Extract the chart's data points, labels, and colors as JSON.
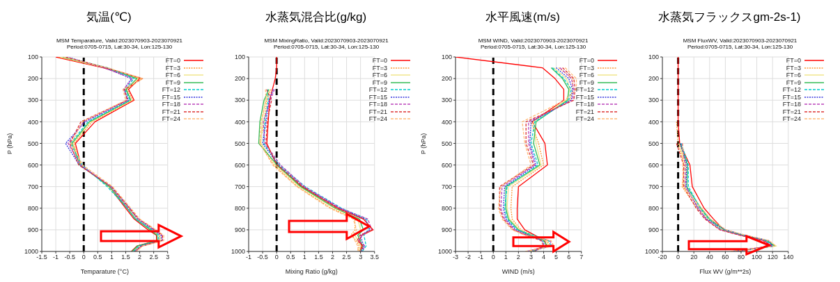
{
  "chart_data": [
    {
      "type": "line",
      "title": "気温(℃)",
      "subtitle": "MSM Temparature, Valid:2023070903-2023070921\nPeriod:0705-0715, Lat:30-34, Lon:125-130",
      "xlabel": "Temparature (°C)",
      "ylabel": "P (hPa)",
      "xlim": [
        -1.5,
        3
      ],
      "xticks": [
        -1.5,
        -1,
        -0.5,
        0,
        0.5,
        1,
        1.5,
        2,
        2.5,
        3
      ],
      "ylim": [
        1000,
        100
      ],
      "yticks": [
        100,
        200,
        300,
        400,
        500,
        600,
        700,
        800,
        900,
        1000
      ],
      "grid": true,
      "legend": "top right",
      "ref_lines": [
        {
          "axis": "x",
          "value": 0,
          "color": "#000000",
          "line_style": "dashed"
        }
      ],
      "series": [
        {
          "name": "FT=0",
          "color": "#ff0000",
          "line_style": "solid",
          "x": [
            -1.0,
            0.7,
            2.0,
            1.6,
            1.8,
            0.4,
            -0.3,
            -0.1,
            0.9,
            1.5,
            1.8,
            2.3,
            2.6,
            2.6,
            1.9,
            1.7
          ],
          "values": [
            100,
            150,
            200,
            250,
            300,
            400,
            500,
            600,
            700,
            800,
            850,
            900,
            925,
            950,
            975,
            1000
          ]
        },
        {
          "name": "FT=3",
          "color": "#ff9933",
          "line_style": "dotted",
          "x": [
            -0.9,
            0.74,
            2.05,
            1.55,
            1.75,
            0.3,
            -0.35,
            -0.12,
            0.95,
            1.58,
            1.9,
            2.4,
            2.7,
            2.7,
            2.0,
            1.75
          ],
          "values": [
            100,
            150,
            200,
            250,
            300,
            400,
            500,
            600,
            700,
            800,
            850,
            900,
            925,
            950,
            975,
            1000
          ]
        },
        {
          "name": "FT=6",
          "color": "#f0e68c",
          "line_style": "solid",
          "x": [
            -0.85,
            0.78,
            1.95,
            1.5,
            1.7,
            0.25,
            -0.4,
            -0.08,
            0.87,
            1.62,
            1.88,
            2.45,
            2.72,
            2.75,
            2.02,
            1.8
          ],
          "values": [
            100,
            150,
            200,
            250,
            300,
            400,
            500,
            600,
            700,
            800,
            850,
            900,
            925,
            950,
            975,
            1000
          ]
        },
        {
          "name": "FT=9",
          "color": "#33bb55",
          "line_style": "solid",
          "x": [
            -0.75,
            0.82,
            1.9,
            1.52,
            1.68,
            0.2,
            -0.42,
            -0.14,
            0.92,
            1.55,
            1.85,
            2.38,
            2.62,
            2.64,
            1.92,
            1.72
          ],
          "values": [
            100,
            150,
            200,
            250,
            300,
            400,
            500,
            600,
            700,
            800,
            850,
            900,
            925,
            950,
            975,
            1000
          ]
        },
        {
          "name": "FT=12",
          "color": "#00cccc",
          "line_style": "dashed",
          "x": [
            -0.7,
            0.86,
            1.8,
            1.48,
            1.65,
            0.15,
            -0.47,
            -0.06,
            0.84,
            1.56,
            1.84,
            2.44,
            2.68,
            2.68,
            1.97,
            1.78
          ],
          "values": [
            100,
            150,
            200,
            250,
            300,
            400,
            500,
            600,
            700,
            800,
            850,
            900,
            925,
            950,
            975,
            1000
          ]
        },
        {
          "name": "FT=15",
          "color": "#3333dd",
          "line_style": "dotted",
          "x": [
            -0.6,
            0.76,
            1.7,
            1.44,
            1.6,
            0.05,
            -0.65,
            -0.16,
            0.98,
            1.65,
            1.92,
            2.5,
            2.76,
            2.78,
            2.04,
            1.82
          ],
          "values": [
            100,
            150,
            200,
            250,
            300,
            400,
            500,
            600,
            700,
            800,
            850,
            900,
            925,
            950,
            975,
            1000
          ]
        },
        {
          "name": "FT=18",
          "color": "#bb44bb",
          "line_style": "dashed",
          "x": [
            -0.64,
            0.72,
            1.75,
            1.42,
            1.58,
            0.0,
            -0.56,
            -0.11,
            0.96,
            1.6,
            1.96,
            2.52,
            2.8,
            2.82,
            2.06,
            1.86
          ],
          "values": [
            100,
            150,
            200,
            250,
            300,
            400,
            500,
            600,
            700,
            800,
            850,
            900,
            925,
            950,
            975,
            1000
          ]
        },
        {
          "name": "FT=21",
          "color": "#dd3333",
          "line_style": "dashed",
          "x": [
            -0.66,
            0.8,
            2.1,
            1.46,
            1.55,
            -0.1,
            -0.5,
            -0.18,
            1.0,
            1.64,
            1.98,
            2.56,
            2.82,
            2.8,
            2.08,
            1.84
          ],
          "values": [
            100,
            150,
            200,
            250,
            300,
            400,
            500,
            600,
            700,
            800,
            850,
            900,
            925,
            950,
            975,
            1000
          ]
        },
        {
          "name": "FT=24",
          "color": "#ffbb77",
          "line_style": "dashed",
          "x": [
            -0.72,
            0.84,
            2.12,
            1.4,
            1.5,
            -0.05,
            -0.45,
            -0.04,
            1.03,
            1.68,
            2.0,
            2.58,
            2.86,
            2.86,
            2.1,
            1.88
          ],
          "values": [
            100,
            150,
            200,
            250,
            300,
            400,
            500,
            600,
            700,
            800,
            850,
            900,
            925,
            950,
            975,
            1000
          ]
        }
      ]
    },
    {
      "type": "line",
      "title": "水蒸気混合比(g/kg)",
      "subtitle": "MSM MixingRatio, Valid:2023070903-2023070921\nPeriod:0705-0715, Lat:30-34, Lon:125-130",
      "xlabel": "Mixing Ratio (g/kg)",
      "xlim": [
        -1,
        3.5
      ],
      "xticks": [
        -1,
        -0.5,
        0,
        0.5,
        1,
        1.5,
        2,
        2.5,
        3,
        3.5
      ],
      "ylim": [
        1000,
        100
      ],
      "yticks": [
        100,
        200,
        300,
        400,
        500,
        600,
        700,
        800,
        900,
        1000
      ],
      "grid": true,
      "legend": "top right",
      "ref_lines": [
        {
          "axis": "x",
          "value": 0,
          "color": "#000000",
          "line_style": "dashed"
        }
      ],
      "series": [
        {
          "name": "FT=0",
          "color": "#ff0000",
          "line_style": "solid",
          "x": [
            0,
            0,
            -0.05,
            -0.15,
            -0.25,
            -0.3,
            -0.35,
            0.0,
            0.9,
            2.2,
            3.1,
            3.45,
            3.05,
            2.95,
            3.05,
            2.95
          ],
          "values": [
            100,
            150,
            200,
            250,
            300,
            400,
            500,
            600,
            700,
            800,
            850,
            900,
            925,
            950,
            975,
            1000
          ]
        },
        {
          "name": "FT=3",
          "color": "#ff9933",
          "line_style": "dotted",
          "x": [
            null,
            null,
            null,
            -0.2,
            -0.35,
            -0.45,
            -0.6,
            -0.1,
            0.75,
            1.95,
            2.8,
            2.8,
            2.65,
            2.85,
            2.95,
            2.9
          ],
          "values": [
            null,
            null,
            null,
            250,
            300,
            400,
            500,
            600,
            700,
            800,
            850,
            900,
            925,
            950,
            975,
            1000
          ]
        },
        {
          "name": "FT=6",
          "color": "#f0e68c",
          "line_style": "solid",
          "x": [
            null,
            null,
            null,
            -0.24,
            -0.4,
            -0.52,
            -0.56,
            -0.05,
            0.82,
            2.05,
            2.9,
            3.0,
            2.8,
            2.9,
            3.0,
            2.95
          ],
          "values": [
            null,
            null,
            null,
            250,
            300,
            400,
            500,
            600,
            700,
            800,
            850,
            900,
            925,
            950,
            975,
            1000
          ]
        },
        {
          "name": "FT=9",
          "color": "#33bb55",
          "line_style": "solid",
          "x": [
            null,
            null,
            null,
            -0.28,
            -0.45,
            -0.6,
            -0.64,
            0.02,
            0.86,
            2.1,
            2.96,
            3.1,
            2.9,
            3.0,
            3.08,
            3.0
          ],
          "values": [
            null,
            null,
            null,
            250,
            300,
            400,
            500,
            600,
            700,
            800,
            850,
            900,
            925,
            950,
            975,
            1000
          ]
        },
        {
          "name": "FT=12",
          "color": "#00cccc",
          "line_style": "dashed",
          "x": [
            null,
            null,
            null,
            -0.32,
            -0.3,
            -0.42,
            -0.46,
            0.1,
            1.02,
            2.32,
            3.22,
            3.28,
            3.12,
            3.16,
            3.2,
            3.06
          ],
          "values": [
            null,
            null,
            null,
            250,
            300,
            400,
            500,
            600,
            700,
            800,
            850,
            900,
            925,
            950,
            975,
            1000
          ]
        },
        {
          "name": "FT=15",
          "color": "#3333dd",
          "line_style": "dotted",
          "x": [
            null,
            null,
            null,
            -0.12,
            -0.27,
            -0.38,
            -0.5,
            0.06,
            0.96,
            2.26,
            3.16,
            3.34,
            3.0,
            3.05,
            3.13,
            3.02
          ],
          "values": [
            null,
            null,
            null,
            250,
            300,
            400,
            500,
            600,
            700,
            800,
            850,
            900,
            925,
            950,
            975,
            1000
          ]
        },
        {
          "name": "FT=18",
          "color": "#bb44bb",
          "line_style": "dashed",
          "x": [
            null,
            null,
            null,
            -0.08,
            -0.22,
            -0.48,
            -0.42,
            0.14,
            0.99,
            2.28,
            3.26,
            3.4,
            3.06,
            2.92,
            3.16,
            3.04
          ],
          "values": [
            null,
            null,
            null,
            250,
            300,
            400,
            500,
            600,
            700,
            800,
            850,
            900,
            925,
            950,
            975,
            1000
          ]
        },
        {
          "name": "FT=21",
          "color": "#dd3333",
          "line_style": "dashed",
          "x": [
            null,
            null,
            null,
            -0.36,
            -0.18,
            -0.34,
            -0.38,
            0.04,
            0.93,
            2.16,
            3.12,
            3.42,
            2.98,
            2.88,
            3.1,
            2.98
          ],
          "values": [
            null,
            null,
            null,
            250,
            300,
            400,
            500,
            600,
            700,
            800,
            850,
            900,
            925,
            950,
            975,
            1000
          ]
        },
        {
          "name": "FT=24",
          "color": "#ffbb77",
          "line_style": "dashed",
          "x": [
            null,
            null,
            null,
            -0.4,
            -0.38,
            -0.56,
            -0.6,
            -0.14,
            0.72,
            1.9,
            2.74,
            2.86,
            2.72,
            2.8,
            2.9,
            2.92
          ],
          "values": [
            null,
            null,
            null,
            250,
            300,
            400,
            500,
            600,
            700,
            800,
            850,
            900,
            925,
            950,
            975,
            1000
          ]
        }
      ]
    },
    {
      "type": "line",
      "title": "水平風速(m/s)",
      "subtitle": "MSM WIND, Valid:2023070903-2023070921\nPeriod:0705-0715, Lat:30-34, Lon:125-130",
      "xlabel": "WIND (m/s)",
      "ylabel": "P (hPa)",
      "xlim": [
        -3,
        7
      ],
      "xticks": [
        -3,
        -2,
        -1,
        0,
        1,
        2,
        3,
        4,
        5,
        6,
        7
      ],
      "ylim": [
        1000,
        100
      ],
      "yticks": [
        100,
        200,
        300,
        400,
        500,
        600,
        700,
        800,
        900,
        1000
      ],
      "grid": true,
      "legend": "top right",
      "ref_lines": [
        {
          "axis": "x",
          "value": 0,
          "color": "#000000",
          "line_style": "dashed"
        }
      ],
      "series": [
        {
          "name": "FT=0",
          "color": "#ff0000",
          "line_style": "solid",
          "x": [
            -3,
            3.9,
            4.9,
            5.6,
            5.6,
            3.1,
            4.1,
            4.3,
            2.0,
            1.9,
            1.9,
            2.5,
            3.3,
            4.1,
            4.2,
            2.8
          ],
          "values": [
            100,
            150,
            200,
            250,
            300,
            400,
            500,
            600,
            700,
            800,
            850,
            900,
            925,
            950,
            975,
            1000
          ]
        },
        {
          "name": "FT=3",
          "color": "#ff9933",
          "line_style": "dotted",
          "x": [
            null,
            5.2,
            6.3,
            6.3,
            6.1,
            3.0,
            3.6,
            4.0,
            1.5,
            1.4,
            1.5,
            2.2,
            3.1,
            4.3,
            4.5,
            3.0
          ],
          "values": [
            null,
            150,
            200,
            250,
            300,
            400,
            500,
            600,
            700,
            800,
            850,
            900,
            925,
            950,
            975,
            1000
          ]
        },
        {
          "name": "FT=6",
          "color": "#f0e68c",
          "line_style": "solid",
          "x": [
            null,
            4.8,
            5.8,
            6.1,
            5.8,
            3.2,
            3.4,
            3.8,
            1.2,
            1.1,
            1.3,
            2.1,
            3.0,
            4.2,
            4.4,
            2.9
          ],
          "values": [
            null,
            150,
            200,
            250,
            300,
            400,
            500,
            600,
            700,
            800,
            850,
            900,
            925,
            950,
            975,
            1000
          ]
        },
        {
          "name": "FT=9",
          "color": "#33bb55",
          "line_style": "solid",
          "x": [
            null,
            4.6,
            5.5,
            6.0,
            5.9,
            3.4,
            3.2,
            3.7,
            1.0,
            1.0,
            1.2,
            2.0,
            2.9,
            4.0,
            4.3,
            3.1
          ],
          "values": [
            null,
            150,
            200,
            250,
            300,
            400,
            500,
            600,
            700,
            800,
            850,
            900,
            925,
            950,
            975,
            1000
          ]
        },
        {
          "name": "FT=12",
          "color": "#00cccc",
          "line_style": "dashed",
          "x": [
            null,
            4.7,
            5.6,
            6.2,
            6.0,
            3.3,
            3.0,
            3.55,
            1.1,
            0.9,
            1.1,
            1.9,
            3.2,
            4.4,
            4.6,
            2.7
          ],
          "values": [
            null,
            150,
            200,
            250,
            300,
            400,
            500,
            600,
            700,
            800,
            850,
            900,
            925,
            950,
            975,
            1000
          ]
        },
        {
          "name": "FT=15",
          "color": "#3333dd",
          "line_style": "dotted",
          "x": [
            null,
            5.0,
            6.0,
            6.3,
            6.2,
            3.0,
            2.9,
            3.4,
            0.9,
            0.8,
            1.0,
            1.8,
            2.8,
            3.9,
            4.1,
            3.2
          ],
          "values": [
            null,
            150,
            200,
            250,
            300,
            400,
            500,
            600,
            700,
            800,
            850,
            900,
            925,
            950,
            975,
            1000
          ]
        },
        {
          "name": "FT=18",
          "color": "#bb44bb",
          "line_style": "dashed",
          "x": [
            null,
            5.3,
            6.2,
            6.4,
            6.3,
            2.8,
            2.8,
            3.3,
            0.7,
            0.6,
            0.9,
            1.7,
            2.7,
            4.5,
            4.7,
            2.6
          ],
          "values": [
            null,
            150,
            200,
            250,
            300,
            400,
            500,
            600,
            700,
            800,
            850,
            900,
            925,
            950,
            975,
            1000
          ]
        },
        {
          "name": "FT=21",
          "color": "#dd3333",
          "line_style": "dashed",
          "x": [
            null,
            5.5,
            6.4,
            6.5,
            6.4,
            2.6,
            2.6,
            3.2,
            0.5,
            0.5,
            0.8,
            1.6,
            2.6,
            3.8,
            4.0,
            3.3
          ],
          "values": [
            null,
            150,
            200,
            250,
            300,
            400,
            500,
            600,
            700,
            800,
            850,
            900,
            925,
            950,
            975,
            1000
          ]
        },
        {
          "name": "FT=24",
          "color": "#ffbb77",
          "line_style": "dashed",
          "x": [
            null,
            5.7,
            6.6,
            6.6,
            5.7,
            2.3,
            2.5,
            3.0,
            0.6,
            0.4,
            0.7,
            1.5,
            2.5,
            4.6,
            4.8,
            2.5
          ],
          "values": [
            null,
            150,
            200,
            250,
            300,
            400,
            500,
            600,
            700,
            800,
            850,
            900,
            925,
            950,
            975,
            1000
          ]
        }
      ]
    },
    {
      "type": "line",
      "title": "水蒸気フラックスgm-2s-1)",
      "subtitle": "MSM FluxWV, Valid:2023070903-2023070921\nPeriod:0705-0715, Lat:30-34, Lon:125-130",
      "xlabel": "Flux WV (g/m**2s)",
      "xlim": [
        -20,
        140
      ],
      "xticks": [
        -20,
        0,
        20,
        40,
        60,
        80,
        100,
        120,
        140
      ],
      "ylim": [
        1000,
        100
      ],
      "yticks": [
        100,
        200,
        300,
        400,
        500,
        600,
        700,
        800,
        900,
        1000
      ],
      "grid": true,
      "legend": "top right",
      "ref_lines": [
        {
          "axis": "x",
          "value": 0,
          "color": "#000000",
          "line_style": "dashed"
        }
      ],
      "series": [
        {
          "name": "FT=0",
          "color": "#ff0000",
          "line_style": "solid",
          "x": [
            0,
            0,
            0,
            0,
            0,
            0,
            2,
            15,
            18,
            33,
            45,
            58,
            82,
            110,
            118,
            70
          ],
          "values": [
            100,
            150,
            200,
            250,
            300,
            400,
            500,
            600,
            700,
            800,
            850,
            900,
            925,
            950,
            975,
            1000
          ]
        },
        {
          "name": "FT=3",
          "color": "#ff9933",
          "line_style": "dotted",
          "x": [
            null,
            null,
            null,
            null,
            null,
            -2,
            0,
            8,
            5,
            24,
            37,
            56,
            80,
            112,
            122,
            69
          ],
          "values": [
            null,
            null,
            null,
            null,
            null,
            400,
            500,
            600,
            700,
            800,
            850,
            900,
            925,
            950,
            975,
            1000
          ]
        },
        {
          "name": "FT=6",
          "color": "#f0e68c",
          "line_style": "solid",
          "x": [
            null,
            null,
            null,
            null,
            null,
            null,
            1,
            10,
            8,
            27,
            38,
            57,
            84,
            114,
            125,
            71
          ],
          "values": [
            null,
            null,
            null,
            null,
            null,
            null,
            500,
            600,
            700,
            800,
            850,
            900,
            925,
            950,
            975,
            1000
          ]
        },
        {
          "name": "FT=9",
          "color": "#33bb55",
          "line_style": "solid",
          "x": [
            null,
            null,
            null,
            null,
            null,
            null,
            3,
            12,
            11,
            29,
            40,
            59,
            83,
            113,
            123,
            72
          ],
          "values": [
            null,
            null,
            null,
            null,
            null,
            null,
            500,
            600,
            700,
            800,
            850,
            900,
            925,
            950,
            975,
            1000
          ]
        },
        {
          "name": "FT=12",
          "color": "#00cccc",
          "line_style": "dashed",
          "x": [
            null,
            null,
            null,
            null,
            null,
            null,
            4,
            13,
            13,
            28,
            39,
            55,
            81,
            111,
            121,
            68
          ],
          "values": [
            null,
            null,
            null,
            null,
            null,
            null,
            500,
            600,
            700,
            800,
            850,
            900,
            925,
            950,
            975,
            1000
          ]
        },
        {
          "name": "FT=15",
          "color": "#3333dd",
          "line_style": "dotted",
          "x": [
            null,
            null,
            null,
            null,
            null,
            null,
            2.5,
            11,
            10,
            25,
            36,
            60,
            85,
            115,
            120,
            73
          ],
          "values": [
            null,
            null,
            null,
            null,
            null,
            null,
            500,
            600,
            700,
            800,
            850,
            900,
            925,
            950,
            975,
            1000
          ]
        },
        {
          "name": "FT=18",
          "color": "#bb44bb",
          "line_style": "dashed",
          "x": [
            null,
            null,
            null,
            null,
            null,
            null,
            5,
            9,
            9,
            26,
            35,
            54,
            79,
            109,
            119,
            67
          ],
          "values": [
            null,
            null,
            null,
            null,
            null,
            null,
            500,
            600,
            700,
            800,
            850,
            900,
            925,
            950,
            975,
            1000
          ]
        },
        {
          "name": "FT=21",
          "color": "#dd3333",
          "line_style": "dashed",
          "x": [
            null,
            null,
            null,
            null,
            null,
            null,
            -2,
            7,
            7,
            23,
            34,
            53,
            78,
            108,
            117,
            74
          ],
          "values": [
            null,
            null,
            null,
            null,
            null,
            null,
            500,
            600,
            700,
            800,
            850,
            900,
            925,
            950,
            975,
            1000
          ]
        },
        {
          "name": "FT=24",
          "color": "#ffbb77",
          "line_style": "dashed",
          "x": [
            null,
            null,
            null,
            null,
            null,
            null,
            6,
            6,
            6,
            30,
            41,
            61,
            86,
            116,
            124,
            66
          ],
          "values": [
            null,
            null,
            null,
            null,
            null,
            null,
            500,
            600,
            700,
            800,
            850,
            900,
            925,
            950,
            975,
            1000
          ]
        }
      ]
    }
  ]
}
